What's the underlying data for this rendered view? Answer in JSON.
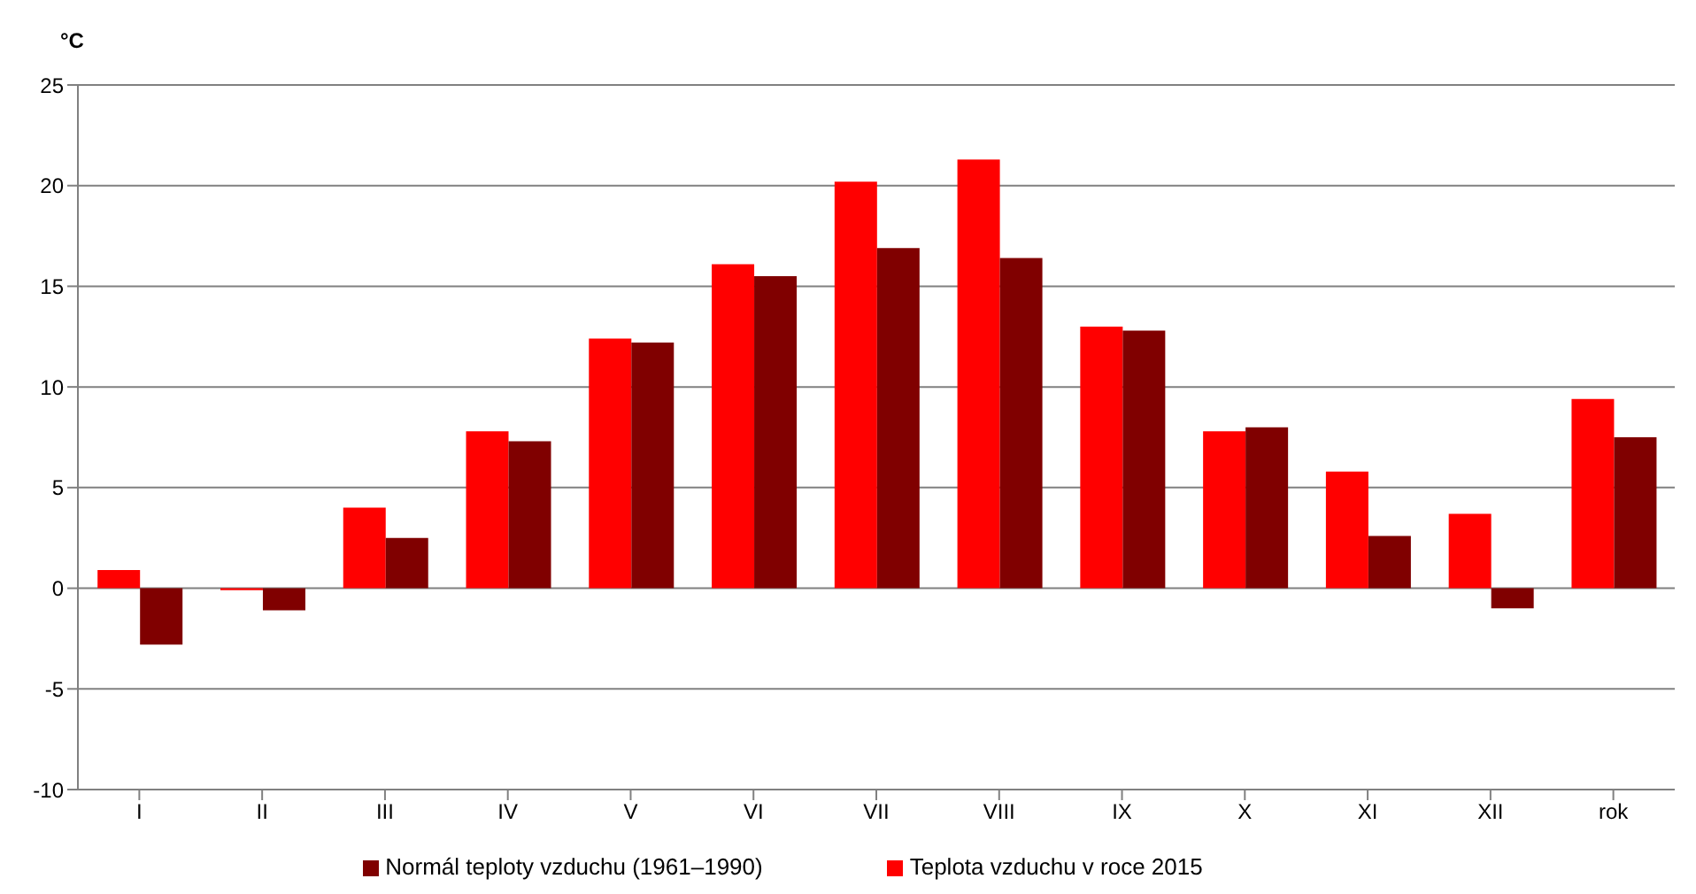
{
  "chart_data": {
    "type": "bar",
    "ylabel": "°C",
    "categories": [
      "I",
      "II",
      "III",
      "IV",
      "V",
      "VI",
      "VII",
      "VIII",
      "IX",
      "X",
      "XI",
      "XII",
      "rok"
    ],
    "series": [
      {
        "name": "Teplota vzduchu v roce 2015",
        "color": "#ff0000",
        "values": [
          0.9,
          -0.1,
          4.0,
          7.8,
          12.4,
          16.1,
          20.2,
          21.3,
          13.0,
          7.8,
          5.8,
          3.7,
          9.4
        ]
      },
      {
        "name": "Normál teploty vzduchu (1961–1990)",
        "color": "#800000",
        "values": [
          -2.8,
          -1.1,
          2.5,
          7.3,
          12.2,
          15.5,
          16.9,
          16.4,
          12.8,
          8.0,
          2.6,
          -1.0,
          7.5
        ]
      }
    ],
    "ylim": [
      -10,
      25
    ],
    "yticks": [
      -10,
      -5,
      0,
      5,
      10,
      15,
      20,
      25
    ],
    "grid": "y",
    "legend": "bottom"
  }
}
